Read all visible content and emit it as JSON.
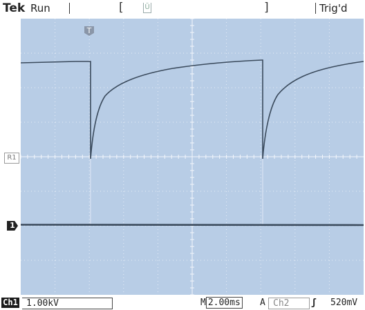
{
  "header": {
    "brand": "Tek",
    "run_state": "Run",
    "trigger_status": "Trig'd",
    "trigger_position_icon": "trigger-position-icon"
  },
  "screen": {
    "background_color": "#b8cde6",
    "trace_color": "#3a4a5c",
    "markers": {
      "trigger_marker": "T",
      "ref_marker": "R1",
      "channel_marker": "1"
    }
  },
  "footer": {
    "channel_label": "Ch1",
    "channel_scale": "1.00kV",
    "timebase_prefix": "M",
    "timebase": "2.00ms",
    "acq_mode": "A",
    "trigger_source": "Ch2",
    "trigger_slope_icon": "rising-edge-icon",
    "trigger_level": "520mV"
  }
}
